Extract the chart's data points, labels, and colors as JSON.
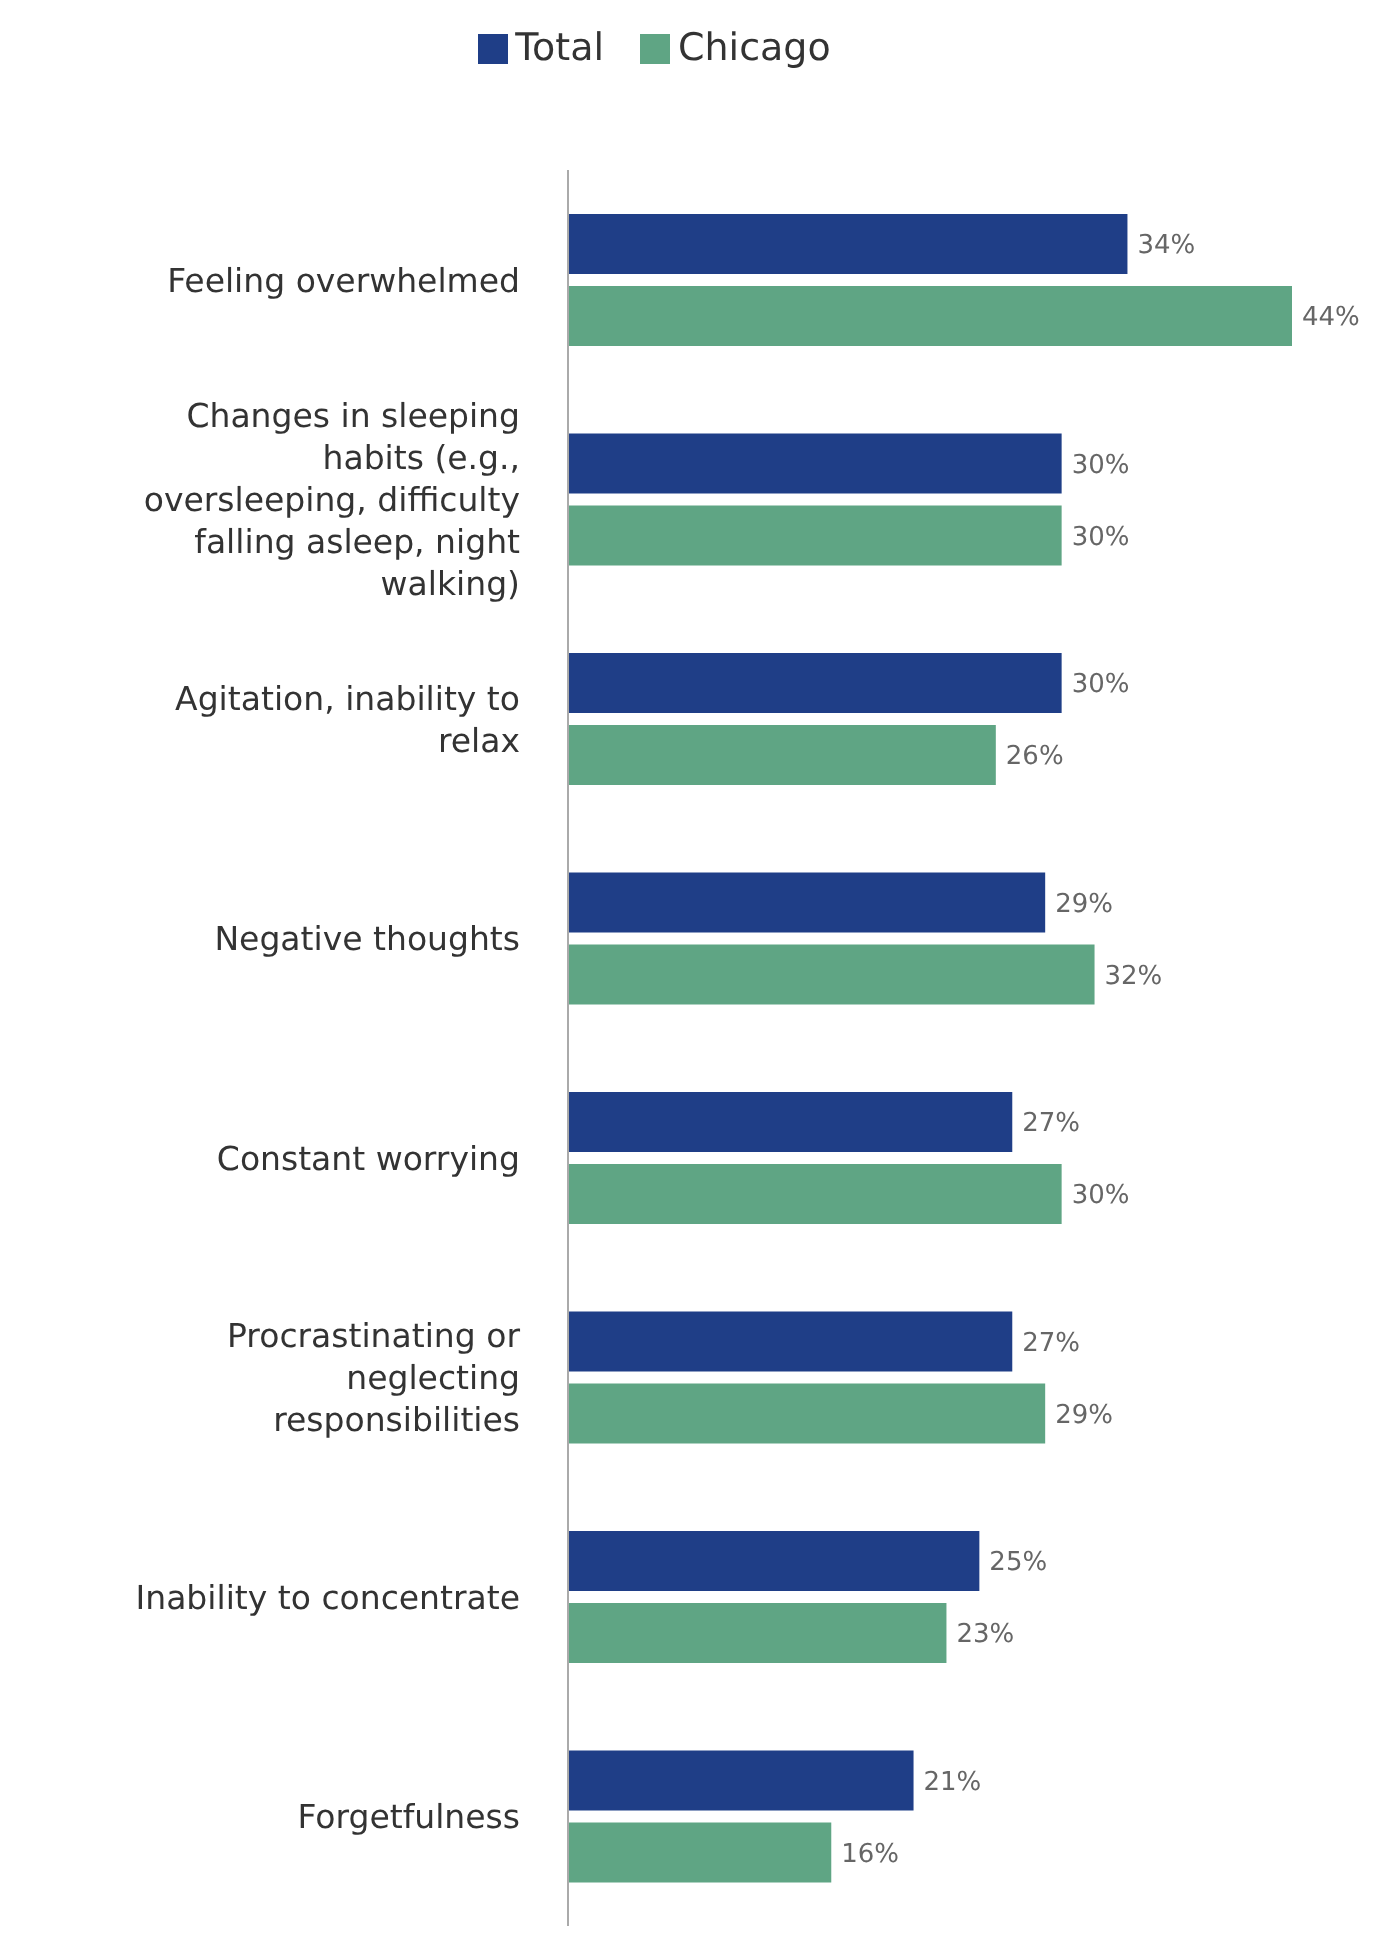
{
  "chart_data": {
    "type": "bar",
    "orientation": "horizontal",
    "categories": [
      "Feeling overwhelmed",
      "Changes in sleeping habits (e.g., oversleeping, difficulty falling asleep, night walking)",
      "Agitation, inability to relax",
      "Negative thoughts",
      "Constant worrying",
      "Procrastinating or neglecting responsibilities",
      "Inability to concentrate",
      "Forgetfulness"
    ],
    "series": [
      {
        "name": "Total",
        "color": "#1f3e87",
        "values": [
          34,
          30,
          30,
          29,
          27,
          27,
          25,
          21
        ],
        "value_labels": [
          "34%",
          "30%",
          "30%",
          "29%",
          "27%",
          "27%",
          "25%",
          "21%"
        ]
      },
      {
        "name": "Chicago",
        "color": "#5fa584",
        "values": [
          44,
          30,
          26,
          32,
          30,
          29,
          23,
          16
        ],
        "value_labels": [
          "44%",
          "30%",
          "26%",
          "32%",
          "30%",
          "29%",
          "23%",
          "16%"
        ]
      }
    ],
    "legend": "top",
    "grid": false
  }
}
